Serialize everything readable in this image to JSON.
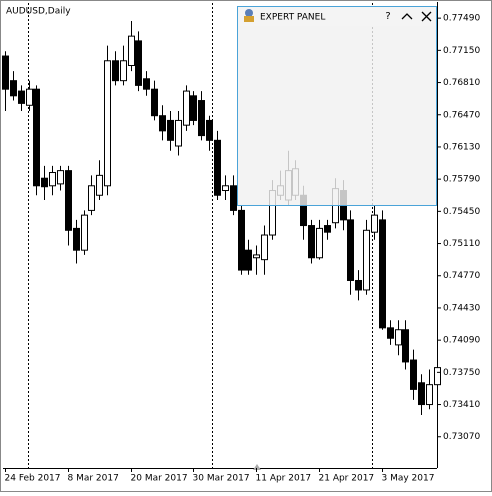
{
  "chart_data": {
    "type": "candlestick",
    "title": "AUDUSD,Daily",
    "categories": [
      "24 Feb 2017",
      null,
      null,
      null,
      null,
      null,
      null,
      null,
      "8 Mar 2017",
      null,
      null,
      null,
      null,
      null,
      null,
      null,
      "20 Mar 2017",
      null,
      null,
      null,
      null,
      null,
      null,
      null,
      "30 Mar 2017",
      null,
      null,
      null,
      null,
      null,
      null,
      null,
      "11 Apr 2017",
      null,
      null,
      null,
      null,
      null,
      null,
      null,
      "21 Apr 2017",
      null,
      null,
      null,
      null,
      null,
      null,
      null,
      "3 May 2017",
      null,
      null,
      null,
      null,
      null,
      null,
      null
    ],
    "open": [
      0.7709,
      0.7683,
      0.7672,
      0.7657,
      0.7674,
      0.758,
      0.7572,
      0.7574,
      0.7588,
      0.7527,
      0.7504,
      0.7546,
      0.7562,
      0.7572,
      0.7704,
      0.7683,
      0.7699,
      0.7725,
      0.7685,
      0.7674,
      0.7646,
      0.7641,
      0.7614,
      0.7636,
      0.7667,
      0.7662,
      0.7641,
      0.762,
      0.7567,
      0.7572,
      0.7546,
      0.7504,
      0.7496,
      0.7494,
      0.752,
      0.7562,
      0.7557,
      0.7562,
      0.7562,
      0.753,
      0.7496,
      0.753,
      0.7533,
      0.7567,
      0.7536,
      0.7472,
      0.7462,
      0.7523,
      0.7536,
      0.7422,
      0.7404,
      0.742,
      0.7388,
      0.7364,
      0.7341,
      0.7362
    ],
    "high": [
      0.7714,
      0.7693,
      0.7678,
      0.7683,
      0.7678,
      0.7593,
      0.7593,
      0.7593,
      0.7593,
      0.7536,
      0.7546,
      0.7583,
      0.7599,
      0.772,
      0.7714,
      0.772,
      0.7746,
      0.7735,
      0.7693,
      0.7683,
      0.7657,
      0.7651,
      0.7651,
      0.7678,
      0.7672,
      0.7672,
      0.7646,
      0.763,
      0.7583,
      0.7583,
      0.7551,
      0.7515,
      0.7509,
      0.753,
      0.7578,
      0.7588,
      0.7609,
      0.7599,
      0.7572,
      0.7536,
      0.7536,
      0.7536,
      0.758,
      0.7578,
      0.7546,
      0.7483,
      0.7536,
      0.7551,
      0.7546,
      0.743,
      0.743,
      0.743,
      0.7399,
      0.7373,
      0.7378,
      0.7388
    ],
    "low": [
      0.7651,
      0.7662,
      0.7651,
      0.7651,
      0.7562,
      0.7557,
      0.7562,
      0.7567,
      0.7509,
      0.749,
      0.7499,
      0.7541,
      0.7557,
      0.7562,
      0.7678,
      0.7678,
      0.7693,
      0.7672,
      0.7667,
      0.7641,
      0.762,
      0.7609,
      0.7604,
      0.763,
      0.7636,
      0.762,
      0.7609,
      0.7557,
      0.7557,
      0.7541,
      0.7478,
      0.7478,
      0.7478,
      0.7478,
      0.7515,
      0.7557,
      0.7551,
      0.7557,
      0.7515,
      0.749,
      0.7494,
      0.7515,
      0.7527,
      0.7525,
      0.7457,
      0.7451,
      0.7457,
      0.7515,
      0.742,
      0.7404,
      0.7393,
      0.7378,
      0.7346,
      0.733,
      0.7336,
      0.7357
    ],
    "close": [
      0.7674,
      0.7667,
      0.7659,
      0.7674,
      0.7572,
      0.7571,
      0.7586,
      0.7588,
      0.7525,
      0.7504,
      0.7541,
      0.7572,
      0.7583,
      0.7704,
      0.7683,
      0.7704,
      0.773,
      0.7678,
      0.7674,
      0.7646,
      0.763,
      0.762,
      0.7641,
      0.7672,
      0.7641,
      0.7625,
      0.762,
      0.7562,
      0.7572,
      0.7546,
      0.7483,
      0.7483,
      0.7499,
      0.752,
      0.7567,
      0.7572,
      0.7588,
      0.759,
      0.753,
      0.7496,
      0.7527,
      0.7523,
      0.7569,
      0.7536,
      0.7472,
      0.7462,
      0.7525,
      0.7541,
      0.7422,
      0.7411,
      0.742,
      0.7386,
      0.7357,
      0.7341,
      0.7362,
      0.738
    ],
    "up_color": "#ffffff",
    "down_color": "#000000",
    "ylim": [
      0.7274,
      0.7765
    ],
    "yticks": [
      {
        "value": 0.7749,
        "label": "0.77490"
      },
      {
        "value": 0.7715,
        "label": "0.77150"
      },
      {
        "value": 0.7681,
        "label": "0.76810"
      },
      {
        "value": 0.7647,
        "label": "0.76470"
      },
      {
        "value": 0.7613,
        "label": "0.76130"
      },
      {
        "value": 0.7579,
        "label": "0.75790"
      },
      {
        "value": 0.7545,
        "label": "0.75450"
      },
      {
        "value": 0.7511,
        "label": "0.75110"
      },
      {
        "value": 0.7477,
        "label": "0.74770"
      },
      {
        "value": 0.7443,
        "label": "0.74430"
      },
      {
        "value": 0.7409,
        "label": "0.74090"
      },
      {
        "value": 0.7375,
        "label": "0.73750"
      },
      {
        "value": 0.7341,
        "label": "0.73410"
      },
      {
        "value": 0.7307,
        "label": "0.73070"
      }
    ],
    "grid": false
  },
  "panel": {
    "title": "EXPERT PANEL",
    "help": "?"
  }
}
